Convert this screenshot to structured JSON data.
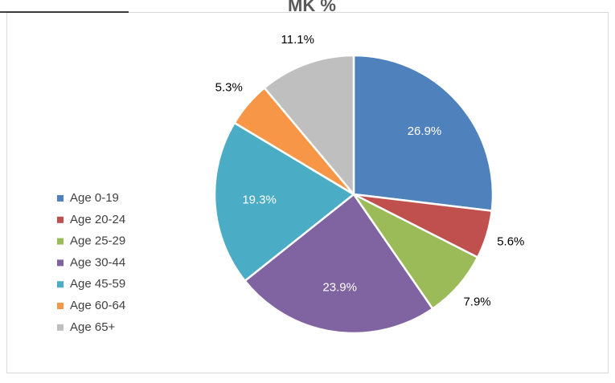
{
  "chart_data": {
    "type": "pie",
    "title": "MK %",
    "categories": [
      "Age 0-19",
      "Age 20-24",
      "Age 25-29",
      "Age 30-44",
      "Age 45-59",
      "Age 60-64",
      "Age 65+"
    ],
    "values": [
      26.9,
      5.6,
      7.9,
      23.9,
      19.3,
      5.3,
      11.1
    ],
    "value_labels": [
      "26.9%",
      "5.6%",
      "7.9%",
      "23.9%",
      "19.3%",
      "5.3%",
      "11.1%"
    ],
    "colors": [
      "#4f81bd",
      "#c0504d",
      "#9bbb59",
      "#8064a2",
      "#4bacc6",
      "#f79646",
      "#bfbfbf"
    ],
    "legend": "left"
  }
}
